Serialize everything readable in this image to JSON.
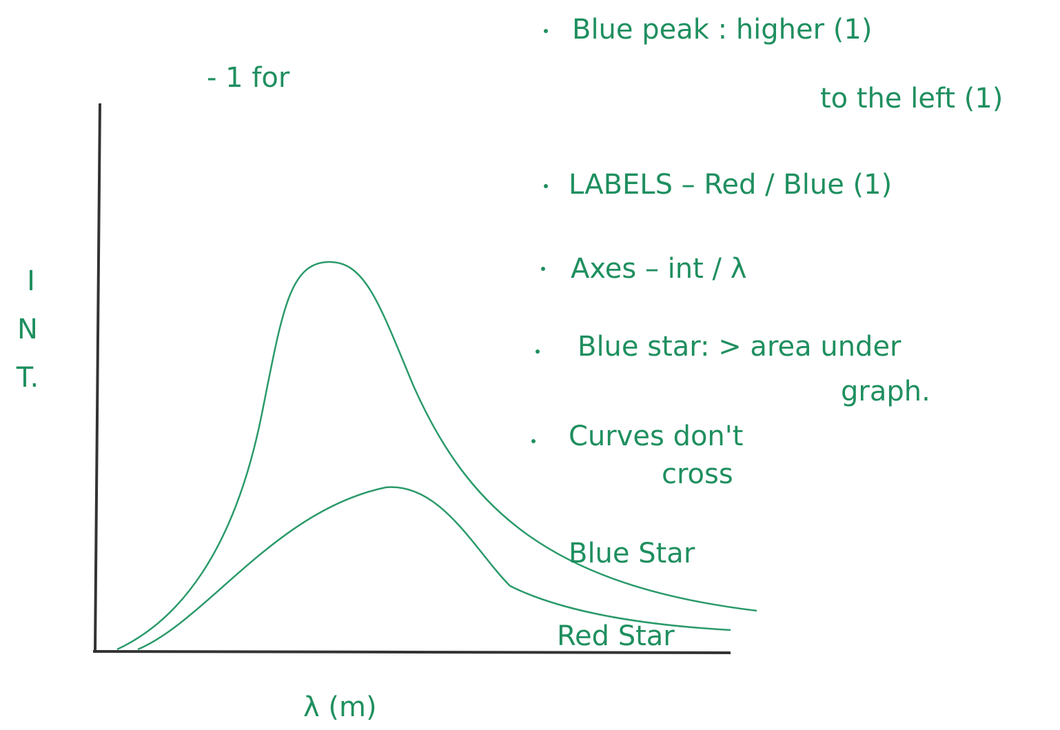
{
  "header": {
    "note": "- 1 for"
  },
  "axes": {
    "y_label": [
      "I",
      "N",
      "T."
    ],
    "x_label": "λ (m)"
  },
  "curves": [
    {
      "label": "Blue Star"
    },
    {
      "label": "Red Star"
    }
  ],
  "notes": [
    {
      "lines": [
        "Blue peak : higher (1)",
        "to the left (1)"
      ]
    },
    {
      "lines": [
        "LABELS – Red / Blue (1)"
      ]
    },
    {
      "lines": [
        "Axes – int / λ"
      ]
    },
    {
      "lines": [
        "Blue star: > area under",
        "graph."
      ]
    },
    {
      "lines": [
        "Curves don't",
        "cross"
      ]
    }
  ]
}
